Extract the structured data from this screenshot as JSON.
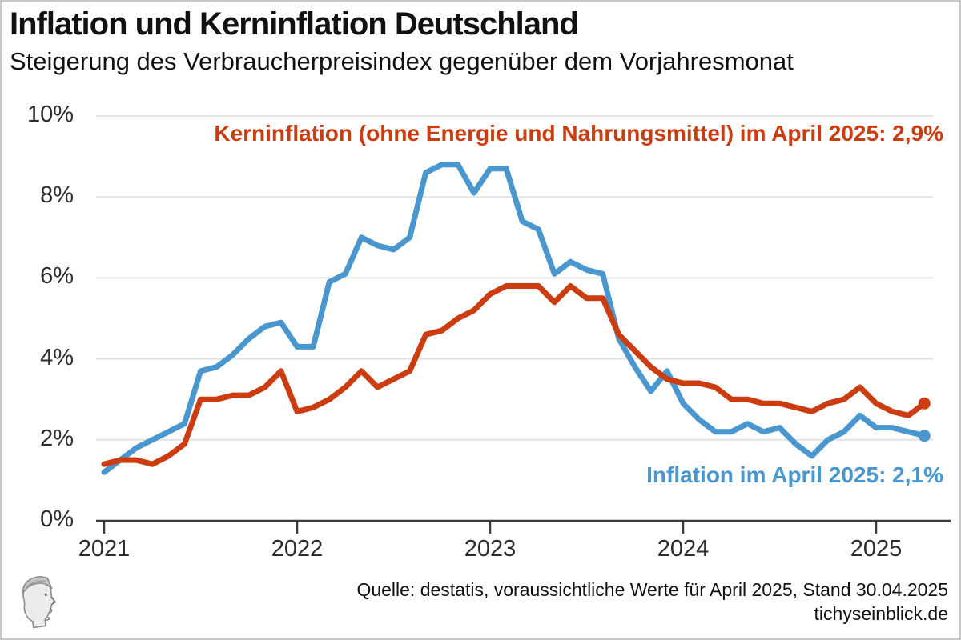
{
  "header": {
    "title": "Inflation und Kerninflation Deutschland",
    "subtitle": "Steigerung des Verbraucherpreisindex gegenüber dem Vorjahresmonat"
  },
  "annotations": {
    "core": "Kerninflation (ohne Energie und Nahrungsmittel) im April 2025: 2,9%",
    "headline": "Inflation im April 2025: 2,1%"
  },
  "footer": {
    "source": "Quelle: destatis, voraussichtliche Werte für April 2025, Stand 30.04.2025",
    "site": "tichyseinblick.de",
    "logo": "tichys-einblick-head-logo"
  },
  "colors": {
    "inflation_blue": "#4a97cf",
    "core_red": "#cb3c10",
    "gridline": "#e3e3e3",
    "axis": "#3b3b3b",
    "axis_label": "#2d2d2d",
    "border": "#c8c8c8"
  },
  "chart_data": {
    "type": "line",
    "title": "Inflation und Kerninflation Deutschland",
    "subtitle": "Steigerung des Verbraucherpreisindex gegenüber dem Vorjahresmonat",
    "xlabel": "",
    "ylabel": "",
    "x_start": "2021-01",
    "x_end": "2025-04",
    "frequency": "monthly",
    "ylim": [
      0,
      10
    ],
    "grid": "horizontal",
    "legend_position": "inline-annotations",
    "y_ticks": {
      "labels": [
        "0%",
        "2%",
        "4%",
        "6%",
        "8%",
        "10%"
      ],
      "values": [
        0,
        2,
        4,
        6,
        8,
        10
      ]
    },
    "x_ticks": {
      "labels": [
        "2021",
        "2022",
        "2023",
        "2024",
        "2025"
      ],
      "year_index": [
        0,
        1,
        2,
        3,
        4
      ]
    },
    "series": [
      {
        "id": "inflation",
        "name": "Inflation",
        "color": "#4a97cf",
        "end_value_label": "2,1%",
        "values": [
          1.2,
          1.5,
          1.8,
          2.0,
          2.2,
          2.4,
          3.7,
          3.8,
          4.1,
          4.5,
          4.8,
          4.9,
          4.3,
          4.3,
          5.9,
          6.1,
          7.0,
          6.8,
          6.7,
          7.0,
          8.6,
          8.8,
          8.8,
          8.1,
          8.7,
          8.7,
          7.4,
          7.2,
          6.1,
          6.4,
          6.2,
          6.1,
          4.5,
          3.8,
          3.2,
          3.7,
          2.9,
          2.5,
          2.2,
          2.2,
          2.4,
          2.2,
          2.3,
          1.9,
          1.6,
          2.0,
          2.2,
          2.6,
          2.3,
          2.3,
          2.2,
          2.1
        ]
      },
      {
        "id": "core-inflation",
        "name": "Kerninflation (ohne Energie und Nahrungsmittel)",
        "color": "#cb3c10",
        "end_value_label": "2,9%",
        "values": [
          1.4,
          1.5,
          1.5,
          1.4,
          1.6,
          1.9,
          3.0,
          3.0,
          3.1,
          3.1,
          3.3,
          3.7,
          2.7,
          2.8,
          3.0,
          3.3,
          3.7,
          3.3,
          3.5,
          3.7,
          4.6,
          4.7,
          5.0,
          5.2,
          5.6,
          5.8,
          5.8,
          5.8,
          5.4,
          5.8,
          5.5,
          5.5,
          4.6,
          4.2,
          3.8,
          3.5,
          3.4,
          3.4,
          3.3,
          3.0,
          3.0,
          2.9,
          2.9,
          2.8,
          2.7,
          2.9,
          3.0,
          3.3,
          2.9,
          2.7,
          2.6,
          2.9
        ]
      }
    ]
  }
}
